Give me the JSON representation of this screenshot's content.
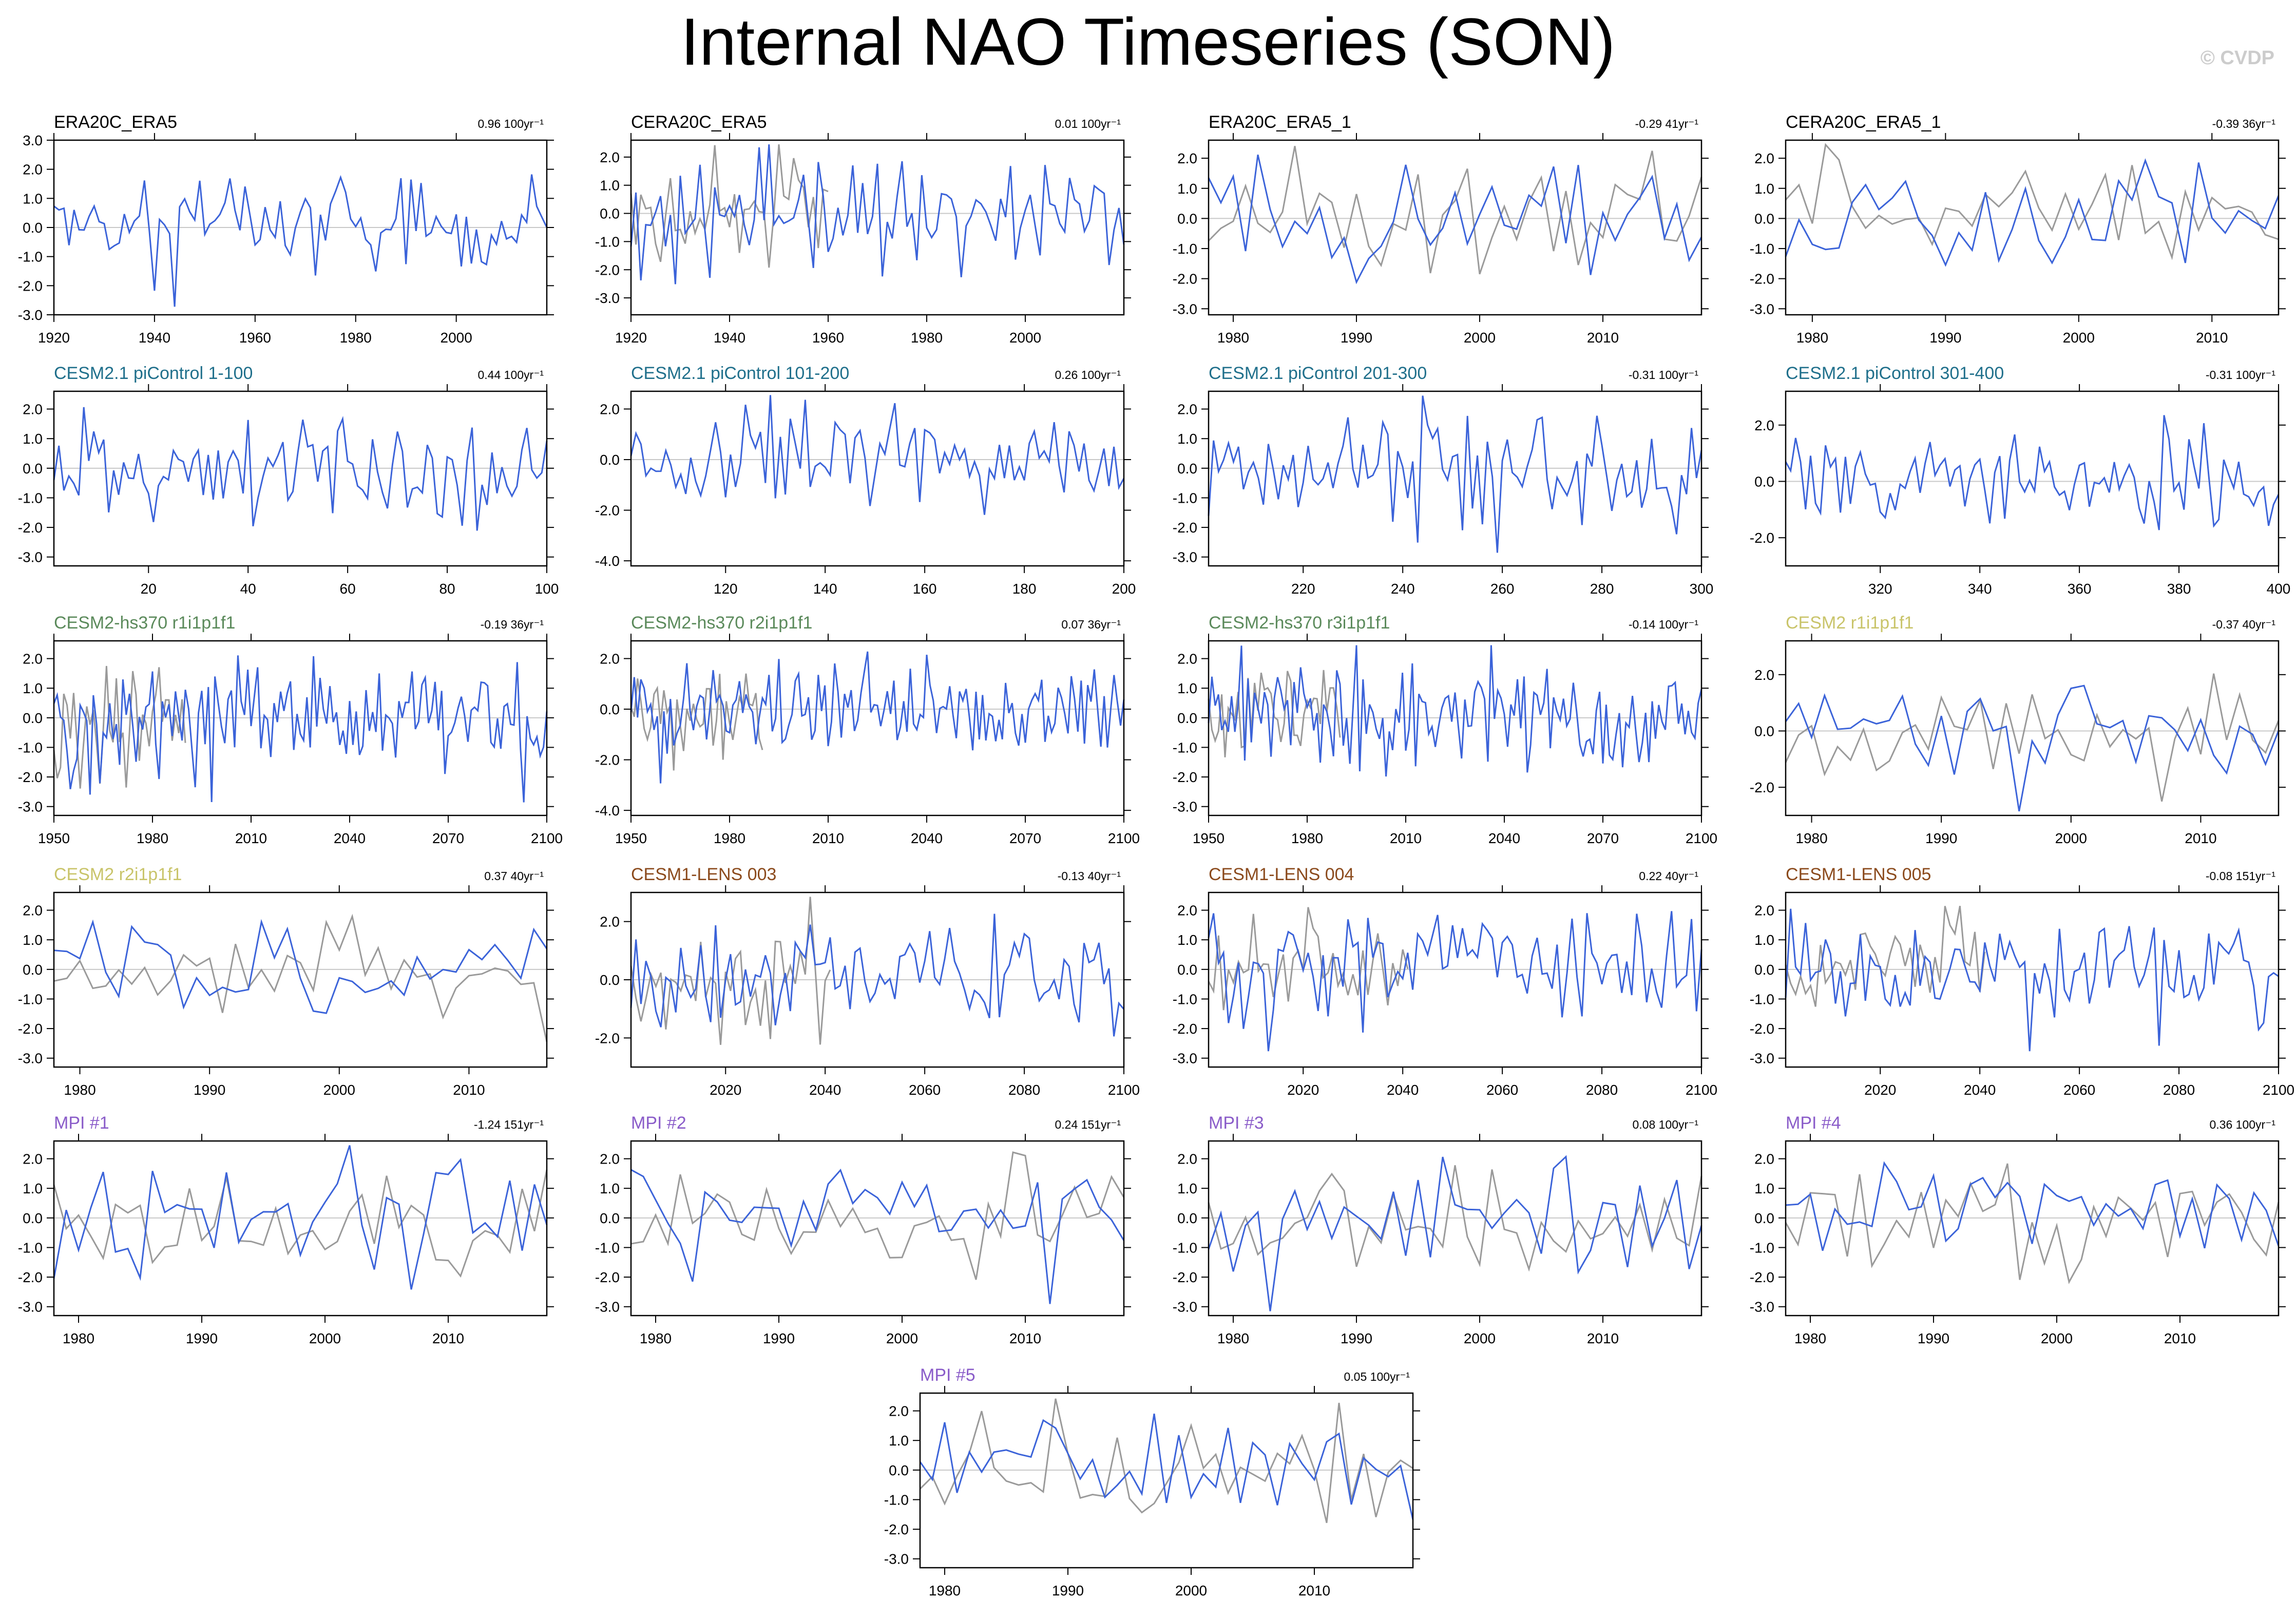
{
  "title": "Internal NAO Timeseries (SON)",
  "credit": "© CVDP",
  "colors": {
    "simulation": "#3b63d9",
    "observation": "#9a9a9a",
    "zero_line": "#c8c8c8",
    "axis": "#000000",
    "title_obs": "#000000",
    "title_cesm21": "#1f6f8b",
    "title_hs370": "#5b8a5b",
    "title_cesm2": "#c9c46a",
    "title_lens": "#8b4a1c",
    "title_mpi": "#8a5cc9"
  },
  "chart_data": [
    {
      "type": "line",
      "title": "ERA20C_ERA5",
      "title_color": "title_obs",
      "trend": "0.96 100yr⁻¹",
      "x_range": [
        1920,
        2018
      ],
      "x_ticks": [
        1920,
        1940,
        1960,
        1980,
        2000
      ],
      "y_range": [
        -3,
        3
      ],
      "y_ticks": [
        -3,
        -2,
        -1,
        0,
        1,
        2,
        3
      ],
      "obs": false,
      "seed": 11
    },
    {
      "type": "line",
      "title": "CERA20C_ERA5",
      "title_color": "title_obs",
      "trend": "0.01 100yr⁻¹",
      "x_range": [
        1920,
        2020
      ],
      "x_ticks": [
        1920,
        1940,
        1960,
        1980,
        2000
      ],
      "y_range": [
        -3.6,
        2.6
      ],
      "y_ticks": [
        -3,
        -2,
        -1,
        0,
        1,
        2
      ],
      "obs": true,
      "seed": 12
    },
    {
      "type": "line",
      "title": "ERA20C_ERA5_1",
      "title_color": "title_obs",
      "trend": "-0.29 41yr⁻¹",
      "x_range": [
        1978,
        2018
      ],
      "x_ticks": [
        1980,
        1990,
        2000,
        2010
      ],
      "y_range": [
        -3.2,
        2.6
      ],
      "y_ticks": [
        -3,
        -2,
        -1,
        0,
        1,
        2
      ],
      "obs": true,
      "seed": 13
    },
    {
      "type": "line",
      "title": "CERA20C_ERA5_1",
      "title_color": "title_obs",
      "trend": "-0.39 36yr⁻¹",
      "x_range": [
        1978,
        2015
      ],
      "x_ticks": [
        1980,
        1990,
        2000,
        2010
      ],
      "y_range": [
        -3.2,
        2.6
      ],
      "y_ticks": [
        -3,
        -2,
        -1,
        0,
        1,
        2
      ],
      "obs": true,
      "seed": 14
    },
    {
      "type": "line",
      "title": "CESM2.1 piControl 1-100",
      "title_color": "title_cesm21",
      "trend": "0.44 100yr⁻¹",
      "x_range": [
        1,
        100
      ],
      "x_ticks": [
        20,
        40,
        60,
        80,
        100
      ],
      "y_range": [
        -3.3,
        2.6
      ],
      "y_ticks": [
        -3,
        -2,
        -1,
        0,
        1,
        2
      ],
      "obs": false,
      "seed": 21
    },
    {
      "type": "line",
      "title": "CESM2.1 piControl 101-200",
      "title_color": "title_cesm21",
      "trend": "0.26 100yr⁻¹",
      "x_range": [
        101,
        200
      ],
      "x_ticks": [
        120,
        140,
        160,
        180,
        200
      ],
      "y_range": [
        -4.2,
        2.7
      ],
      "y_ticks": [
        -4,
        -2,
        0,
        2
      ],
      "obs": false,
      "seed": 22
    },
    {
      "type": "line",
      "title": "CESM2.1 piControl 201-300",
      "title_color": "title_cesm21",
      "trend": "-0.31 100yr⁻¹",
      "x_range": [
        201,
        300
      ],
      "x_ticks": [
        220,
        240,
        260,
        280,
        300
      ],
      "y_range": [
        -3.3,
        2.6
      ],
      "y_ticks": [
        -3,
        -2,
        -1,
        0,
        1,
        2
      ],
      "obs": false,
      "seed": 23
    },
    {
      "type": "line",
      "title": "CESM2.1 piControl 301-400",
      "title_color": "title_cesm21",
      "trend": "-0.31 100yr⁻¹",
      "x_range": [
        301,
        400
      ],
      "x_ticks": [
        320,
        340,
        360,
        380,
        400
      ],
      "y_range": [
        -3.0,
        3.2
      ],
      "y_ticks": [
        -2,
        0,
        2
      ],
      "obs": false,
      "seed": 24
    },
    {
      "type": "line",
      "title": "CESM2-hs370 r1i1p1f1",
      "title_color": "title_hs370",
      "trend": "-0.19 36yr⁻¹",
      "x_range": [
        1950,
        2100
      ],
      "x_ticks": [
        1950,
        1980,
        2010,
        2040,
        2070,
        2100
      ],
      "y_range": [
        -3.3,
        2.6
      ],
      "y_ticks": [
        -3,
        -2,
        -1,
        0,
        1,
        2
      ],
      "obs": true,
      "seed": 31
    },
    {
      "type": "line",
      "title": "CESM2-hs370 r2i1p1f1",
      "title_color": "title_hs370",
      "trend": "0.07 36yr⁻¹",
      "x_range": [
        1950,
        2100
      ],
      "x_ticks": [
        1950,
        1980,
        2010,
        2040,
        2070,
        2100
      ],
      "y_range": [
        -4.2,
        2.7
      ],
      "y_ticks": [
        -4,
        -2,
        0,
        2
      ],
      "obs": true,
      "seed": 32
    },
    {
      "type": "line",
      "title": "CESM2-hs370 r3i1p1f1",
      "title_color": "title_hs370",
      "trend": "-0.14 100yr⁻¹",
      "x_range": [
        1950,
        2100
      ],
      "x_ticks": [
        1950,
        1980,
        2010,
        2040,
        2070,
        2100
      ],
      "y_range": [
        -3.3,
        2.6
      ],
      "y_ticks": [
        -3,
        -2,
        -1,
        0,
        1,
        2
      ],
      "obs": true,
      "seed": 33
    },
    {
      "type": "line",
      "title": "CESM2 r1i1p1f1",
      "title_color": "title_cesm2",
      "trend": "-0.37 40yr⁻¹",
      "x_range": [
        1978,
        2016
      ],
      "x_ticks": [
        1980,
        1990,
        2000,
        2010
      ],
      "y_range": [
        -3.0,
        3.2
      ],
      "y_ticks": [
        -2,
        0,
        2
      ],
      "obs": true,
      "seed": 34
    },
    {
      "type": "line",
      "title": "CESM2 r2i1p1f1",
      "title_color": "title_cesm2",
      "trend": "0.37 40yr⁻¹",
      "x_range": [
        1978,
        2016
      ],
      "x_ticks": [
        1980,
        1990,
        2000,
        2010
      ],
      "y_range": [
        -3.3,
        2.6
      ],
      "y_ticks": [
        -3,
        -2,
        -1,
        0,
        1,
        2
      ],
      "obs": true,
      "seed": 41
    },
    {
      "type": "line",
      "title": "CESM1-LENS 003",
      "title_color": "title_lens",
      "trend": "-0.13 40yr⁻¹",
      "x_range": [
        2001,
        2100
      ],
      "x_ticks": [
        2020,
        2040,
        2060,
        2080,
        2100
      ],
      "y_range": [
        -3.0,
        3.0
      ],
      "y_ticks": [
        -2,
        0,
        2
      ],
      "obs": true,
      "seed": 42
    },
    {
      "type": "line",
      "title": "CESM1-LENS 004",
      "title_color": "title_lens",
      "trend": "0.22 40yr⁻¹",
      "x_range": [
        2001,
        2100
      ],
      "x_ticks": [
        2020,
        2040,
        2060,
        2080,
        2100
      ],
      "y_range": [
        -3.3,
        2.6
      ],
      "y_ticks": [
        -3,
        -2,
        -1,
        0,
        1,
        2
      ],
      "obs": true,
      "seed": 43
    },
    {
      "type": "line",
      "title": "CESM1-LENS 005",
      "title_color": "title_lens",
      "trend": "-0.08 151yr⁻¹",
      "x_range": [
        2001,
        2100
      ],
      "x_ticks": [
        2020,
        2040,
        2060,
        2080,
        2100
      ],
      "y_range": [
        -3.3,
        2.6
      ],
      "y_ticks": [
        -3,
        -2,
        -1,
        0,
        1,
        2
      ],
      "obs": true,
      "seed": 44
    },
    {
      "type": "line",
      "title": "MPI #1",
      "title_color": "title_mpi",
      "trend": "-1.24 151yr⁻¹",
      "x_range": [
        1978,
        2018
      ],
      "x_ticks": [
        1980,
        1990,
        2000,
        2010
      ],
      "y_range": [
        -3.3,
        2.6
      ],
      "y_ticks": [
        -3,
        -2,
        -1,
        0,
        1,
        2
      ],
      "obs": true,
      "seed": 51
    },
    {
      "type": "line",
      "title": "MPI #2",
      "title_color": "title_mpi",
      "trend": "0.24 151yr⁻¹",
      "x_range": [
        1978,
        2018
      ],
      "x_ticks": [
        1980,
        1990,
        2000,
        2010
      ],
      "y_range": [
        -3.3,
        2.6
      ],
      "y_ticks": [
        -3,
        -2,
        -1,
        0,
        1,
        2
      ],
      "obs": true,
      "seed": 52
    },
    {
      "type": "line",
      "title": "MPI #3",
      "title_color": "title_mpi",
      "trend": "0.08 100yr⁻¹",
      "x_range": [
        1978,
        2018
      ],
      "x_ticks": [
        1980,
        1990,
        2000,
        2010
      ],
      "y_range": [
        -3.3,
        2.6
      ],
      "y_ticks": [
        -3,
        -2,
        -1,
        0,
        1,
        2
      ],
      "obs": true,
      "seed": 53
    },
    {
      "type": "line",
      "title": "MPI #4",
      "title_color": "title_mpi",
      "trend": "0.36 100yr⁻¹",
      "x_range": [
        1978,
        2018
      ],
      "x_ticks": [
        1980,
        1990,
        2000,
        2010
      ],
      "y_range": [
        -3.3,
        2.6
      ],
      "y_ticks": [
        -3,
        -2,
        -1,
        0,
        1,
        2
      ],
      "obs": true,
      "seed": 54
    },
    {
      "type": "line",
      "title": "MPI #5",
      "title_color": "title_mpi",
      "trend": "0.05 100yr⁻¹",
      "x_range": [
        1978,
        2018
      ],
      "x_ticks": [
        1980,
        1990,
        2000,
        2010
      ],
      "y_range": [
        -3.3,
        2.6
      ],
      "y_ticks": [
        -3,
        -2,
        -1,
        0,
        1,
        2
      ],
      "obs": true,
      "seed": 61
    }
  ]
}
